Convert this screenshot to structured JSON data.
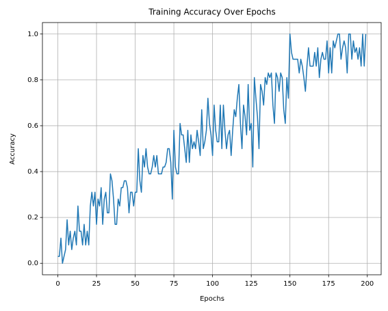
{
  "chart_data": {
    "type": "line",
    "title": "Training Accuracy Over Epochs",
    "x_label": "Epochs",
    "y_label": "Accuracy",
    "x": [
      0,
      1,
      2,
      3,
      4,
      5,
      6,
      7,
      8,
      9,
      10,
      11,
      12,
      13,
      14,
      15,
      16,
      17,
      18,
      19,
      20,
      21,
      22,
      23,
      24,
      25,
      26,
      27,
      28,
      29,
      30,
      31,
      32,
      33,
      34,
      35,
      36,
      37,
      38,
      39,
      40,
      41,
      42,
      43,
      44,
      45,
      46,
      47,
      48,
      49,
      50,
      51,
      52,
      53,
      54,
      55,
      56,
      57,
      58,
      59,
      60,
      61,
      62,
      63,
      64,
      65,
      66,
      67,
      68,
      69,
      70,
      71,
      72,
      73,
      74,
      75,
      76,
      77,
      78,
      79,
      80,
      81,
      82,
      83,
      84,
      85,
      86,
      87,
      88,
      89,
      90,
      91,
      92,
      93,
      94,
      95,
      96,
      97,
      98,
      99,
      100,
      101,
      102,
      103,
      104,
      105,
      106,
      107,
      108,
      109,
      110,
      111,
      112,
      113,
      114,
      115,
      116,
      117,
      118,
      119,
      120,
      121,
      122,
      123,
      124,
      125,
      126,
      127,
      128,
      129,
      130,
      131,
      132,
      133,
      134,
      135,
      136,
      137,
      138,
      139,
      140,
      141,
      142,
      143,
      144,
      145,
      146,
      147,
      148,
      149,
      150,
      151,
      152,
      153,
      154,
      155,
      156,
      157,
      158,
      159,
      160,
      161,
      162,
      163,
      164,
      165,
      166,
      167,
      168,
      169,
      170,
      171,
      172,
      173,
      174,
      175,
      176,
      177,
      178,
      179,
      180,
      181,
      182,
      183,
      184,
      185,
      186,
      187,
      188,
      189,
      190,
      191,
      192,
      193,
      194,
      195,
      196,
      197,
      198,
      199
    ],
    "series": [
      {
        "name": "Accuracy",
        "color": "#1f77b4",
        "values": [
          0.03,
          0.03,
          0.11,
          0.0,
          0.03,
          0.06,
          0.19,
          0.08,
          0.14,
          0.06,
          0.11,
          0.14,
          0.08,
          0.25,
          0.14,
          0.14,
          0.08,
          0.17,
          0.08,
          0.14,
          0.08,
          0.25,
          0.31,
          0.25,
          0.31,
          0.17,
          0.28,
          0.25,
          0.33,
          0.17,
          0.28,
          0.31,
          0.22,
          0.22,
          0.39,
          0.36,
          0.28,
          0.17,
          0.17,
          0.28,
          0.25,
          0.33,
          0.33,
          0.36,
          0.36,
          0.33,
          0.22,
          0.31,
          0.31,
          0.25,
          0.31,
          0.31,
          0.5,
          0.36,
          0.31,
          0.47,
          0.42,
          0.5,
          0.42,
          0.39,
          0.39,
          0.42,
          0.47,
          0.42,
          0.47,
          0.39,
          0.39,
          0.39,
          0.42,
          0.42,
          0.44,
          0.5,
          0.5,
          0.44,
          0.28,
          0.58,
          0.42,
          0.39,
          0.39,
          0.61,
          0.56,
          0.56,
          0.5,
          0.44,
          0.58,
          0.44,
          0.56,
          0.5,
          0.53,
          0.5,
          0.58,
          0.53,
          0.47,
          0.67,
          0.5,
          0.53,
          0.58,
          0.72,
          0.61,
          0.56,
          0.47,
          0.69,
          0.58,
          0.53,
          0.53,
          0.69,
          0.5,
          0.69,
          0.58,
          0.5,
          0.56,
          0.58,
          0.47,
          0.58,
          0.67,
          0.64,
          0.72,
          0.78,
          0.61,
          0.5,
          0.69,
          0.64,
          0.56,
          0.78,
          0.58,
          0.61,
          0.42,
          0.81,
          0.72,
          0.64,
          0.5,
          0.78,
          0.75,
          0.69,
          0.81,
          0.78,
          0.83,
          0.81,
          0.83,
          0.69,
          0.61,
          0.83,
          0.81,
          0.75,
          0.83,
          0.81,
          0.67,
          0.61,
          0.81,
          0.72,
          1.0,
          0.92,
          0.89,
          0.89,
          0.89,
          0.89,
          0.83,
          0.89,
          0.86,
          0.81,
          0.75,
          0.86,
          0.94,
          0.86,
          0.86,
          0.86,
          0.92,
          0.86,
          0.94,
          0.81,
          0.89,
          0.92,
          0.89,
          0.89,
          0.97,
          0.83,
          0.94,
          0.83,
          0.97,
          0.94,
          0.97,
          1.0,
          1.0,
          0.89,
          0.94,
          0.97,
          0.94,
          0.83,
          1.0,
          1.0,
          0.89,
          0.97,
          0.92,
          0.94,
          0.89,
          0.94,
          0.86,
          1.0,
          0.86,
          1.0
        ]
      }
    ],
    "xlim": [
      -9.95,
      208.95
    ],
    "xticks": [
      0,
      25,
      50,
      75,
      100,
      125,
      150,
      175,
      200
    ],
    "ylim": [
      -0.05,
      1.05
    ],
    "yticks": [
      {
        "value": 0,
        "label": "0.0"
      },
      0.2,
      0.4,
      0.6,
      0.8,
      {
        "value": 1,
        "label": "1.0"
      }
    ],
    "grid": true
  }
}
